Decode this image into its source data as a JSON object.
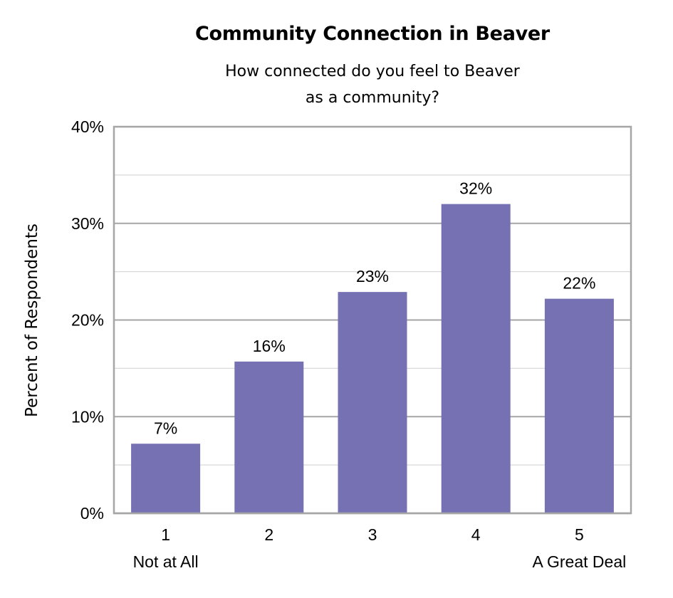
{
  "chart_data": {
    "type": "bar",
    "title": "Community Connection in Beaver",
    "subtitle": [
      "How connected do you feel to Beaver",
      "as a community?"
    ],
    "xlabel": "",
    "ylabel": "Percent of Respondents",
    "categories": [
      "1",
      "2",
      "3",
      "4",
      "5"
    ],
    "category_sublabels": [
      "Not at All",
      "",
      "",
      "",
      "A Great Deal"
    ],
    "values": [
      7.2,
      15.7,
      22.9,
      32.0,
      22.2
    ],
    "data_labels": [
      "7%",
      "16%",
      "23%",
      "32%",
      "22%"
    ],
    "ylim": [
      0,
      40
    ],
    "yticks": [
      0,
      10,
      20,
      30,
      40
    ],
    "ytick_labels": [
      "0%",
      "10%",
      "20%",
      "30%",
      "40%"
    ],
    "grid": true,
    "legend": "none",
    "bar_color": "#7671b3"
  }
}
